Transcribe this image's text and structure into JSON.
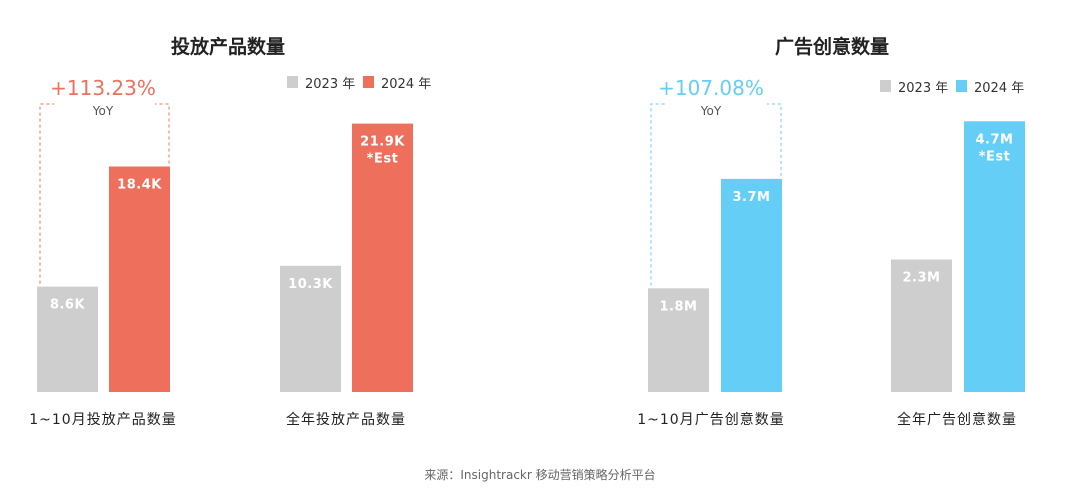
{
  "colors": {
    "y2023": "#cfcece",
    "products_2024": "#ee6f5c",
    "creatives_2024": "#64cef7"
  },
  "chart_data": [
    {
      "type": "bar",
      "title": "投放产品数量",
      "legend": [
        "2023 年",
        "2024 年"
      ],
      "legend_position": "top-right",
      "yoy": {
        "value": "+113.23%",
        "label": "YoY"
      },
      "groups": [
        {
          "label": "1~10月投放产品数量",
          "bars": [
            {
              "series": "2023 年",
              "value": 8.6,
              "label": "8.6K"
            },
            {
              "series": "2024 年",
              "value": 18.4,
              "label": "18.4K"
            }
          ]
        },
        {
          "label": "全年投放产品数量",
          "bars": [
            {
              "series": "2023 年",
              "value": 10.3,
              "label": "10.3K"
            },
            {
              "series": "2024 年",
              "value": 21.9,
              "label": "21.9K",
              "note": "*Est"
            }
          ]
        }
      ],
      "unit": "K",
      "ylim": [
        0,
        23.5
      ]
    },
    {
      "type": "bar",
      "title": "广告创意数量",
      "legend": [
        "2023 年",
        "2024 年"
      ],
      "legend_position": "top-right",
      "yoy": {
        "value": "+107.08%",
        "label": "YoY"
      },
      "groups": [
        {
          "label": "1~10月广告创意数量",
          "bars": [
            {
              "series": "2023 年",
              "value": 1.8,
              "label": "1.8M"
            },
            {
              "series": "2024 年",
              "value": 3.7,
              "label": "3.7M"
            }
          ]
        },
        {
          "label": "全年广告创意数量",
          "bars": [
            {
              "series": "2023 年",
              "value": 2.3,
              "label": "2.3M"
            },
            {
              "series": "2024 年",
              "value": 4.7,
              "label": "4.7M",
              "note": "*Est"
            }
          ]
        }
      ],
      "unit": "M",
      "ylim": [
        0,
        5.0
      ]
    }
  ],
  "source": "来源：Insightrackr 移动营销策略分析平台"
}
